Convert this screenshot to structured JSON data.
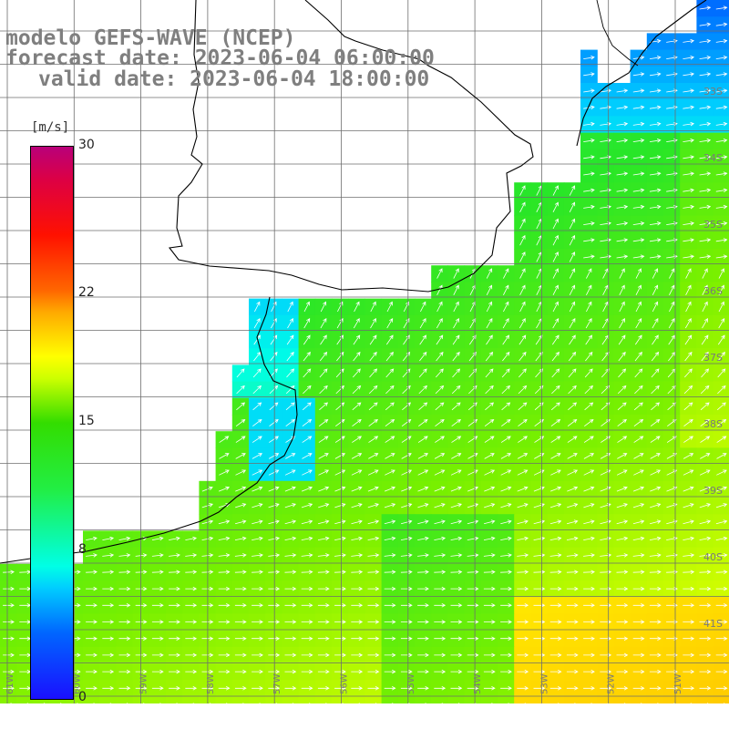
{
  "title": {
    "line1": "modelo GEFS-WAVE (NCEP)",
    "line2": "forecast date: 2023-06-04 06:00:00",
    "line3": "valid date: 2023-06-04 18:00:00"
  },
  "colorbar": {
    "unit": "[m/s]",
    "ticks": [
      {
        "label": "30",
        "value": 30
      },
      {
        "label": "22",
        "value": 22
      },
      {
        "label": "15",
        "value": 15
      },
      {
        "label": "8",
        "value": 8
      },
      {
        "label": "0",
        "value": 0
      }
    ]
  },
  "map": {
    "lat_labels": [
      "33S",
      "34S",
      "35S",
      "36S",
      "37S",
      "38S",
      "39S",
      "40S",
      "41S"
    ],
    "lon_labels": [
      "61W",
      "60W",
      "59W",
      "58W",
      "57W",
      "56W",
      "55W",
      "54W",
      "53W",
      "52W",
      "51W"
    ],
    "colors": {
      "land": "#ffffff",
      "coast": "#000000",
      "grid": "#6e6e6e",
      "arrows": "#ffffff"
    }
  }
}
